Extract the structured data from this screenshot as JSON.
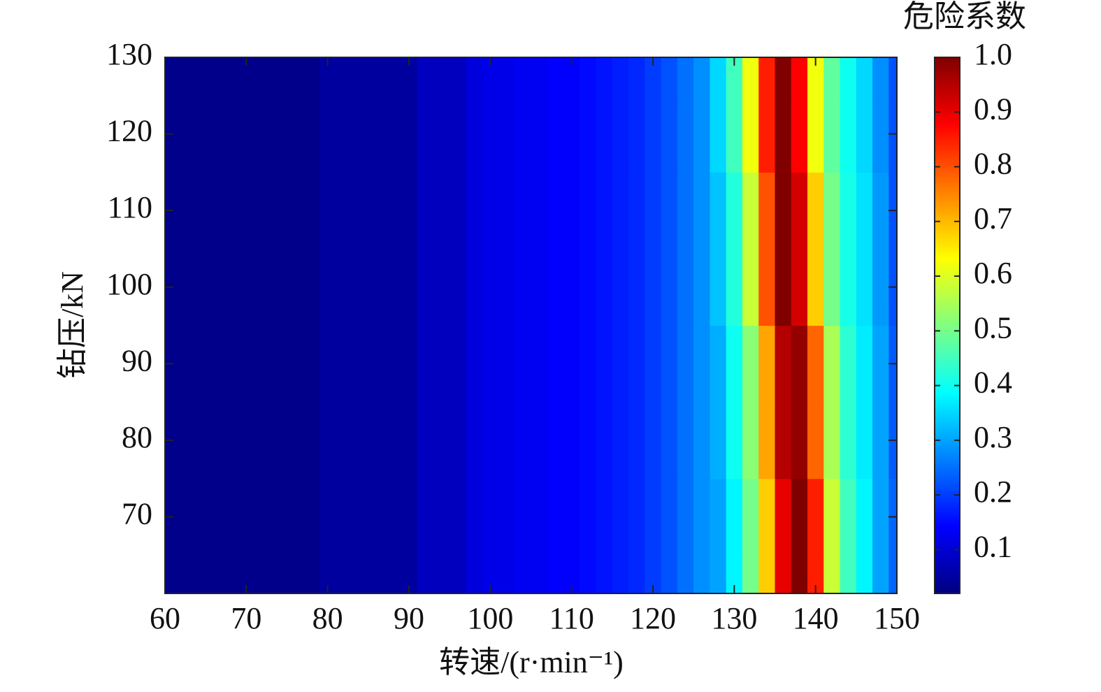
{
  "chart_data": {
    "type": "heatmap",
    "colormap": "jet",
    "xlabel": "转速/(r·min⁻¹)",
    "ylabel": "钻压/kN",
    "colorbar_label": "危险系数",
    "x": [
      60,
      62,
      64,
      66,
      68,
      70,
      72,
      74,
      76,
      78,
      80,
      82,
      84,
      86,
      88,
      90,
      92,
      94,
      96,
      98,
      100,
      102,
      104,
      106,
      108,
      110,
      112,
      114,
      116,
      118,
      120,
      122,
      124,
      126,
      128,
      130,
      132,
      134,
      136,
      138,
      140,
      142,
      144,
      146,
      148,
      150
    ],
    "y": [
      60,
      70,
      80,
      90,
      100,
      110,
      120,
      130
    ],
    "z": [
      [
        0.03,
        0.03,
        0.03,
        0.03,
        0.03,
        0.03,
        0.03,
        0.03,
        0.03,
        0.03,
        0.05,
        0.05,
        0.05,
        0.05,
        0.05,
        0.05,
        0.08,
        0.08,
        0.08,
        0.11,
        0.12,
        0.12,
        0.13,
        0.13,
        0.14,
        0.14,
        0.15,
        0.16,
        0.17,
        0.18,
        0.2,
        0.22,
        0.25,
        0.28,
        0.3,
        0.38,
        0.5,
        0.68,
        0.9,
        1.0,
        0.85,
        0.58,
        0.45,
        0.38,
        0.3,
        0.24
      ],
      [
        0.03,
        0.03,
        0.03,
        0.03,
        0.03,
        0.03,
        0.03,
        0.03,
        0.03,
        0.03,
        0.05,
        0.05,
        0.05,
        0.05,
        0.05,
        0.05,
        0.08,
        0.08,
        0.08,
        0.11,
        0.12,
        0.12,
        0.13,
        0.13,
        0.14,
        0.14,
        0.15,
        0.16,
        0.17,
        0.18,
        0.2,
        0.22,
        0.25,
        0.28,
        0.3,
        0.38,
        0.5,
        0.68,
        0.9,
        1.0,
        0.85,
        0.58,
        0.45,
        0.38,
        0.3,
        0.24
      ],
      [
        0.03,
        0.03,
        0.03,
        0.03,
        0.03,
        0.03,
        0.03,
        0.03,
        0.03,
        0.03,
        0.05,
        0.05,
        0.05,
        0.05,
        0.05,
        0.05,
        0.08,
        0.08,
        0.08,
        0.11,
        0.12,
        0.12,
        0.13,
        0.13,
        0.14,
        0.14,
        0.15,
        0.16,
        0.17,
        0.18,
        0.2,
        0.22,
        0.25,
        0.28,
        0.31,
        0.4,
        0.52,
        0.72,
        0.95,
        0.98,
        0.78,
        0.55,
        0.43,
        0.37,
        0.3,
        0.23
      ],
      [
        0.03,
        0.03,
        0.03,
        0.03,
        0.03,
        0.03,
        0.03,
        0.03,
        0.03,
        0.03,
        0.05,
        0.05,
        0.05,
        0.05,
        0.05,
        0.05,
        0.08,
        0.08,
        0.08,
        0.11,
        0.12,
        0.12,
        0.13,
        0.13,
        0.14,
        0.14,
        0.15,
        0.16,
        0.17,
        0.18,
        0.2,
        0.22,
        0.25,
        0.28,
        0.31,
        0.4,
        0.52,
        0.72,
        0.95,
        0.98,
        0.78,
        0.55,
        0.43,
        0.37,
        0.3,
        0.23
      ],
      [
        0.03,
        0.03,
        0.03,
        0.03,
        0.03,
        0.03,
        0.03,
        0.03,
        0.03,
        0.03,
        0.05,
        0.05,
        0.05,
        0.05,
        0.05,
        0.05,
        0.08,
        0.08,
        0.08,
        0.11,
        0.12,
        0.12,
        0.13,
        0.13,
        0.14,
        0.14,
        0.15,
        0.16,
        0.17,
        0.18,
        0.2,
        0.22,
        0.25,
        0.28,
        0.33,
        0.42,
        0.58,
        0.8,
        1.0,
        0.92,
        0.68,
        0.5,
        0.41,
        0.36,
        0.29,
        0.22
      ],
      [
        0.03,
        0.03,
        0.03,
        0.03,
        0.03,
        0.03,
        0.03,
        0.03,
        0.03,
        0.03,
        0.05,
        0.05,
        0.05,
        0.05,
        0.05,
        0.05,
        0.08,
        0.08,
        0.08,
        0.11,
        0.12,
        0.12,
        0.13,
        0.13,
        0.14,
        0.14,
        0.15,
        0.16,
        0.17,
        0.18,
        0.2,
        0.22,
        0.25,
        0.28,
        0.33,
        0.42,
        0.58,
        0.8,
        1.0,
        0.92,
        0.68,
        0.5,
        0.41,
        0.36,
        0.29,
        0.22
      ],
      [
        0.03,
        0.03,
        0.03,
        0.03,
        0.03,
        0.03,
        0.03,
        0.03,
        0.03,
        0.03,
        0.05,
        0.05,
        0.05,
        0.05,
        0.05,
        0.05,
        0.08,
        0.08,
        0.08,
        0.11,
        0.12,
        0.12,
        0.13,
        0.13,
        0.14,
        0.14,
        0.15,
        0.16,
        0.17,
        0.18,
        0.2,
        0.22,
        0.25,
        0.28,
        0.35,
        0.45,
        0.62,
        0.85,
        1.0,
        0.88,
        0.62,
        0.48,
        0.4,
        0.35,
        0.28,
        0.22
      ],
      [
        0.03,
        0.03,
        0.03,
        0.03,
        0.03,
        0.03,
        0.03,
        0.03,
        0.03,
        0.03,
        0.05,
        0.05,
        0.05,
        0.05,
        0.05,
        0.05,
        0.08,
        0.08,
        0.08,
        0.11,
        0.12,
        0.12,
        0.13,
        0.13,
        0.14,
        0.14,
        0.15,
        0.16,
        0.17,
        0.18,
        0.2,
        0.22,
        0.25,
        0.28,
        0.35,
        0.45,
        0.62,
        0.85,
        1.0,
        0.88,
        0.62,
        0.48,
        0.4,
        0.35,
        0.28,
        0.22
      ]
    ],
    "xlim": [
      60,
      150
    ],
    "xticks": [
      60,
      70,
      80,
      90,
      100,
      110,
      120,
      130,
      140,
      150
    ],
    "ylim": [
      60,
      130
    ],
    "yticks": [
      70,
      80,
      90,
      100,
      110,
      120,
      130
    ],
    "zlim": [
      0.02,
      1.0
    ],
    "zticks": [
      0.1,
      0.2,
      0.3,
      0.4,
      0.5,
      0.6,
      0.7,
      0.8,
      0.9,
      {
        "value": 1,
        "label": "1.0"
      }
    ]
  }
}
